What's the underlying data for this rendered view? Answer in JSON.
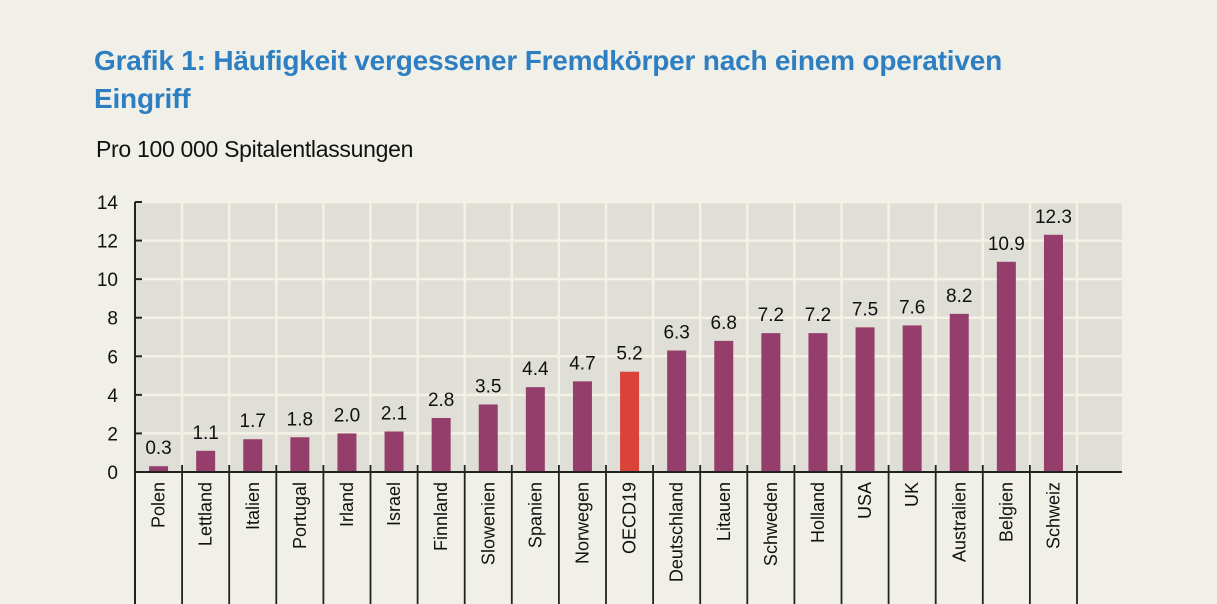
{
  "title": "Grafik 1: Häufigkeit vergessener Fremdkörper nach einem operativen Eingriff",
  "subtitle": "Pro 100 000 Spitalentlassungen",
  "colors": {
    "title": "#2e7fc1",
    "bar": "#963e6b",
    "highlight": "#d9433a",
    "plot_bg": "#dfded7",
    "page_bg": "#f1f0e8"
  },
  "chart_data": {
    "type": "bar",
    "title": "Grafik 1: Häufigkeit vergessener Fremdkörper nach einem operativen Eingriff",
    "subtitle": "Pro 100 000 Spitalentlassungen",
    "xlabel": "",
    "ylabel": "",
    "ylim": [
      0,
      14
    ],
    "yticks": [
      0,
      2,
      4,
      6,
      8,
      10,
      12,
      14
    ],
    "grid": true,
    "legend": "none",
    "categories": [
      "Polen",
      "Lettland",
      "Italien",
      "Portugal",
      "Irland",
      "Israel",
      "Finnland",
      "Slowenien",
      "Spanien",
      "Norwegen",
      "OECD19",
      "Deutschland",
      "Litauen",
      "Schweden",
      "Holland",
      "USA",
      "UK",
      "Australien",
      "Belgien",
      "Schweiz"
    ],
    "values": [
      0.3,
      1.1,
      1.7,
      1.8,
      2.0,
      2.1,
      2.8,
      3.5,
      4.4,
      4.7,
      5.2,
      6.3,
      6.8,
      7.2,
      7.2,
      7.5,
      7.6,
      8.2,
      10.9,
      12.3
    ],
    "value_labels": [
      "0.3",
      "1.1",
      "1.7",
      "1.8",
      "2.0",
      "2.1",
      "2.8",
      "3.5",
      "4.4",
      "4.7",
      "5.2",
      "6.3",
      "6.8",
      "7.2",
      "7.2",
      "7.5",
      "7.6",
      "8.2",
      "10.9",
      "12.3"
    ],
    "highlight_category": "OECD19"
  }
}
